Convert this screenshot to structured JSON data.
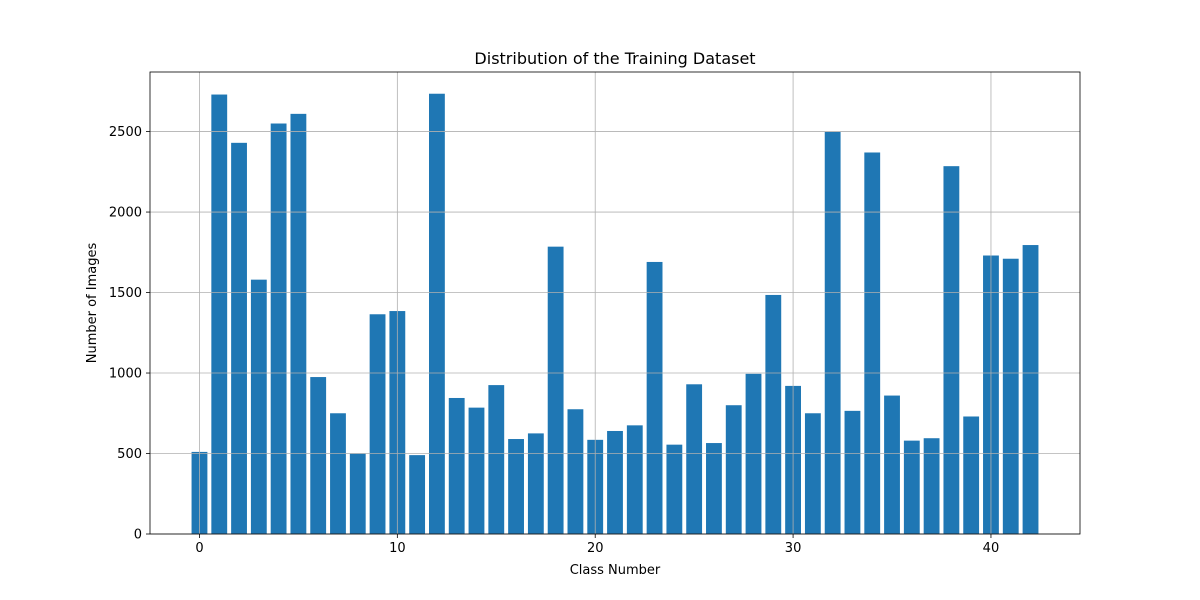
{
  "chart_data": {
    "type": "bar",
    "title": "Distribution of the Training Dataset",
    "xlabel": "Class Number",
    "ylabel": "Number of Images",
    "x": [
      0,
      1,
      2,
      3,
      4,
      5,
      6,
      7,
      8,
      9,
      10,
      11,
      12,
      13,
      14,
      15,
      16,
      17,
      18,
      19,
      20,
      21,
      22,
      23,
      24,
      25,
      26,
      27,
      28,
      29,
      30,
      31,
      32,
      33,
      34,
      35,
      36,
      37,
      38,
      39,
      40,
      41,
      42
    ],
    "values": [
      510,
      2730,
      2430,
      1580,
      2550,
      2610,
      975,
      750,
      500,
      1365,
      1385,
      490,
      2735,
      845,
      785,
      925,
      590,
      625,
      1785,
      775,
      585,
      640,
      675,
      1690,
      555,
      930,
      565,
      800,
      995,
      1485,
      920,
      750,
      2500,
      765,
      2370,
      860,
      580,
      595,
      2285,
      730,
      1730,
      1710,
      1795
    ],
    "xlim": [
      -2.5,
      44.5
    ],
    "ylim": [
      0,
      2870
    ],
    "xticks": [
      0,
      10,
      20,
      30,
      40
    ],
    "yticks": [
      0,
      500,
      1000,
      1500,
      2000,
      2500
    ],
    "grid": true,
    "bar_color": "#1f77b4"
  }
}
